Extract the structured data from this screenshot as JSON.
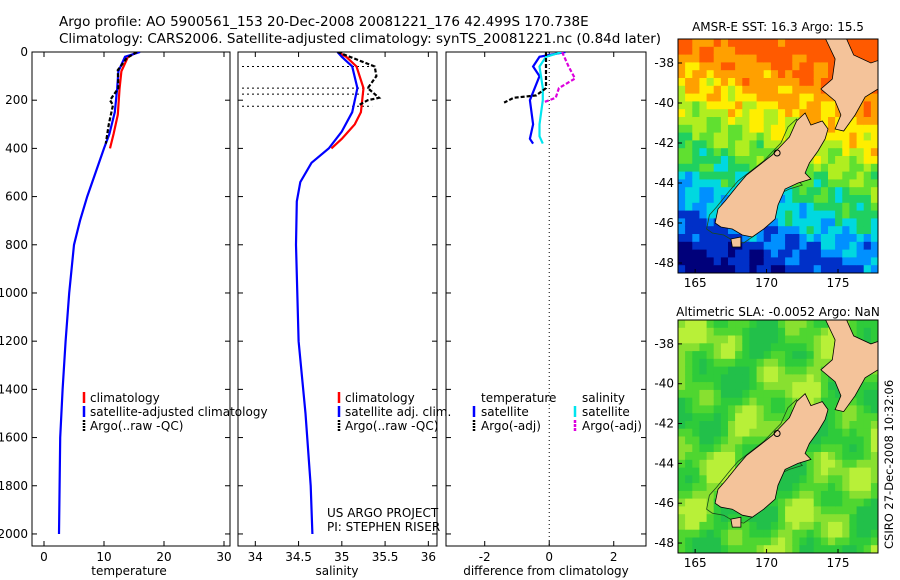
{
  "header": {
    "line1": "Argo profile: AO 5900561_153 20-Dec-2008 20081221_176 42.499S 170.738E",
    "line2": "Climatology: CARS2006. Satellite-adjusted climatology: synTS_20081221.nc (0.84d later)"
  },
  "credit": "CSIRO 27-Dec-2008 10:32:06",
  "colors": {
    "climatology": "#ff0000",
    "satellite": "#0000ff",
    "argo": "#000000",
    "sat_salinity": "#00e5ee",
    "argo_salinity": "#dd00dd",
    "land": "#f4c39a"
  },
  "chart_data": [
    {
      "type": "line",
      "id": "temperature",
      "xlabel": "temperature",
      "ylabel": "",
      "xlim": [
        -2,
        31
      ],
      "ylim": [
        2050,
        0
      ],
      "xticks": [
        0,
        10,
        20,
        30
      ],
      "yticks": [
        0,
        200,
        400,
        600,
        800,
        1000,
        1200,
        1400,
        1600,
        1800,
        2000
      ],
      "legend": [
        "climatology",
        "satellite-adjusted climatology",
        "Argo(..raw -QC)"
      ],
      "series": [
        {
          "name": "climatology",
          "color": "#ff0000",
          "x": [
            15.6,
            14.0,
            12.9,
            12.6,
            12.3,
            11.6,
            11.0
          ],
          "y": [
            0,
            20,
            80,
            150,
            260,
            340,
            400
          ]
        },
        {
          "name": "satellite-adjusted climatology",
          "color": "#0000ff",
          "x": [
            16.0,
            13.5,
            12.4,
            12.2,
            11.8,
            10.9,
            10.0,
            8.6,
            7.2,
            6.0,
            5.0,
            4.2,
            3.6,
            3.1,
            2.7,
            2.5
          ],
          "y": [
            0,
            20,
            80,
            150,
            250,
            340,
            400,
            500,
            600,
            700,
            800,
            1000,
            1200,
            1400,
            1600,
            2000
          ]
        },
        {
          "name": "Argo(..raw -QC)",
          "color": "#000000",
          "x": [
            15.5,
            13.8,
            12.3,
            12.4,
            11.0,
            11.5,
            10.8,
            10.3
          ],
          "y": [
            0,
            25,
            75,
            150,
            200,
            220,
            300,
            380
          ]
        }
      ]
    },
    {
      "type": "line",
      "id": "salinity",
      "xlabel": "salinity",
      "ylabel": "",
      "xlim": [
        33.8,
        36.1
      ],
      "ylim": [
        2050,
        0
      ],
      "xticks": [
        34,
        34.5,
        35,
        35.5,
        36
      ],
      "legend": [
        "climatology",
        "satellite adj. clim.",
        "Argo(..raw -QC)"
      ],
      "annotation": [
        "US ARGO PROJECT",
        "PI: STEPHEN RISER"
      ],
      "series": [
        {
          "name": "climatology",
          "color": "#ff0000",
          "x": [
            34.95,
            35.05,
            35.17,
            35.25,
            35.22,
            35.15,
            35.0,
            34.88
          ],
          "y": [
            0,
            20,
            60,
            150,
            250,
            300,
            360,
            400
          ]
        },
        {
          "name": "satellite adj. clim.",
          "color": "#0000ff",
          "x": [
            34.95,
            35.0,
            35.12,
            35.18,
            35.12,
            35.0,
            34.85,
            34.65,
            34.52,
            34.48,
            34.47,
            34.5,
            34.58,
            34.64,
            34.66
          ],
          "y": [
            0,
            20,
            60,
            150,
            250,
            330,
            400,
            460,
            540,
            620,
            800,
            1200,
            1500,
            1800,
            2000
          ]
        },
        {
          "name": "Argo(..raw -QC)",
          "color": "#000000",
          "x": [
            34.95,
            35.38,
            35.4,
            35.3,
            35.43,
            35.3,
            35.2
          ],
          "y": [
            0,
            60,
            100,
            150,
            190,
            200,
            220
          ]
        }
      ]
    },
    {
      "type": "line",
      "id": "difference",
      "xlabel": "difference from climatology",
      "ylabel": "",
      "xlim": [
        -3.2,
        3
      ],
      "ylim": [
        2050,
        0
      ],
      "xticks": [
        -2,
        0,
        2
      ],
      "legend_title_left": "temperature",
      "legend_title_right": "salinity",
      "legend": [
        "satellite",
        "Argo(-adj)",
        "satellite",
        "Argo(-adj)"
      ],
      "series": [
        {
          "name": "satellite",
          "group": "temperature",
          "color": "#0000ff",
          "x": [
            0.5,
            -0.3,
            -0.5,
            -0.3,
            -0.6,
            -0.5,
            -0.6,
            -0.5
          ],
          "y": [
            0,
            20,
            60,
            100,
            200,
            300,
            360,
            380
          ]
        },
        {
          "name": "satellite",
          "group": "salinity",
          "color": "#00e5ee",
          "x": [
            0.4,
            -0.1,
            -0.3,
            -0.2,
            -0.2,
            -0.3,
            -0.3,
            -0.2
          ],
          "y": [
            0,
            20,
            60,
            150,
            200,
            300,
            350,
            380
          ]
        },
        {
          "name": "Argo(-adj)",
          "group": "temperature",
          "color": "#000000",
          "x": [
            -0.1,
            -0.1,
            -0.4,
            -1.1,
            -1.4
          ],
          "y": [
            0,
            150,
            180,
            190,
            210
          ]
        },
        {
          "name": "Argo(-adj)",
          "group": "salinity",
          "color": "#dd00dd",
          "x": [
            0.4,
            0.6,
            0.8,
            0.3,
            0.2,
            -0.2
          ],
          "y": [
            0,
            60,
            110,
            150,
            190,
            210
          ]
        }
      ]
    },
    {
      "type": "heatmap",
      "id": "sst_map",
      "title": "AMSR-E SST: 16.3 Argo: 15.5",
      "xlim": [
        163.8,
        177.8
      ],
      "ylim": [
        -48.5,
        -36.8
      ],
      "xticks": [
        165,
        170,
        175
      ],
      "yticks": [
        -38,
        -40,
        -42,
        -44,
        -46,
        -48
      ]
    },
    {
      "type": "heatmap",
      "id": "sla_map",
      "title": "Altimetric SLA: -0.0052 Argo: NaN",
      "xlim": [
        163.8,
        177.8
      ],
      "ylim": [
        -48.5,
        -36.8
      ],
      "xticks": [
        165,
        170,
        175
      ],
      "yticks": [
        -38,
        -40,
        -42,
        -44,
        -46,
        -48
      ]
    }
  ]
}
